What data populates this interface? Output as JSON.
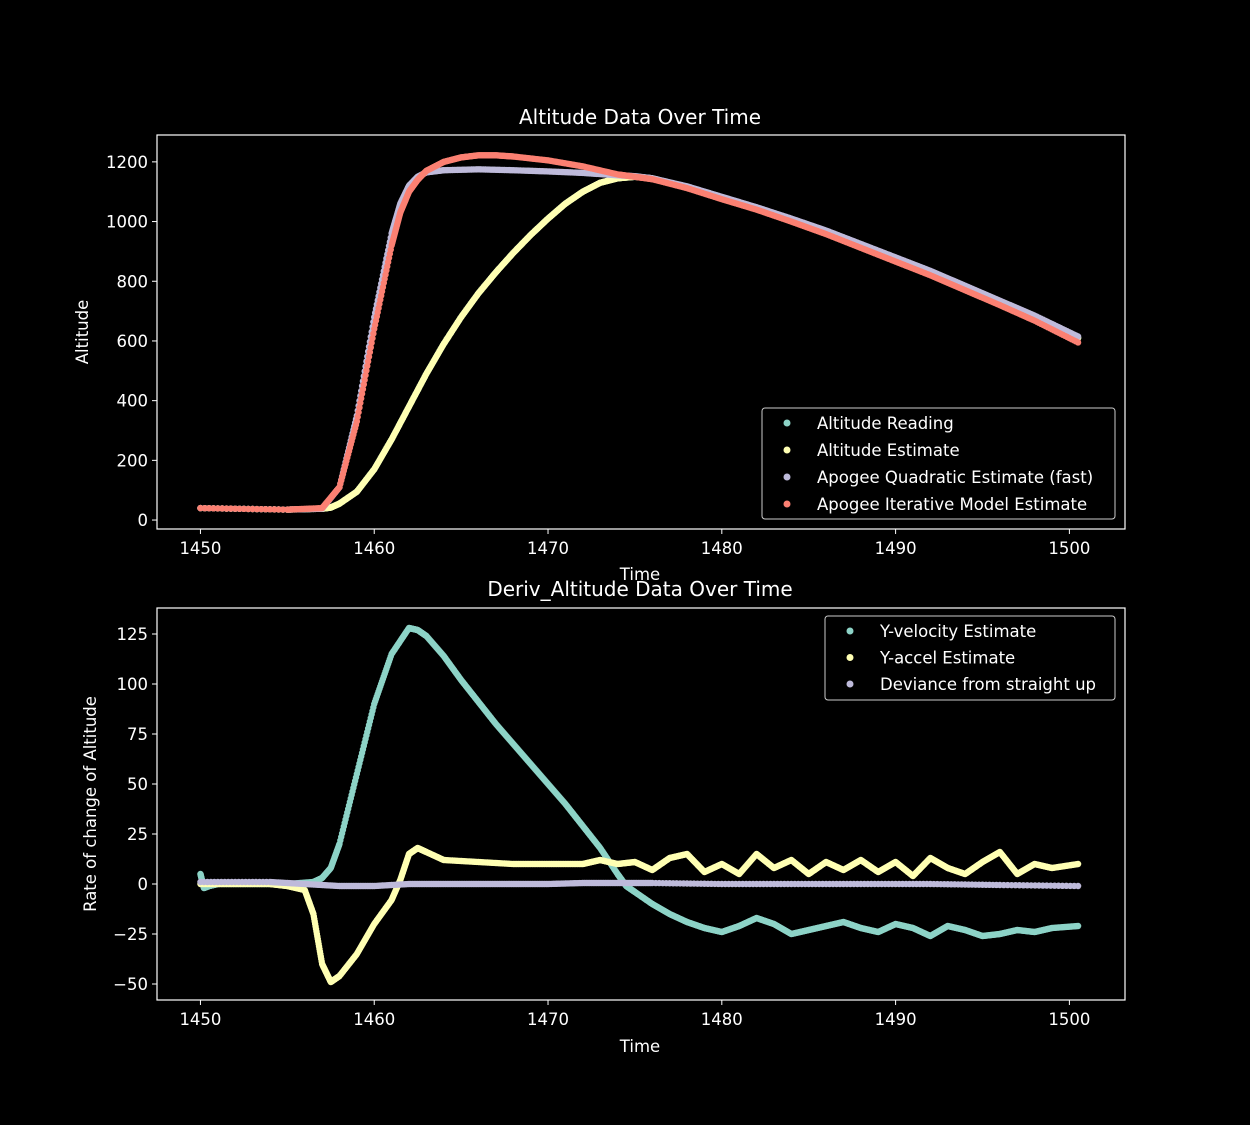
{
  "chart_data": [
    {
      "type": "scatter",
      "title": "Altitude Data Over Time",
      "xlabel": "Time",
      "ylabel": "Altitude",
      "xlim": [
        1447.5,
        1503.2
      ],
      "ylim": [
        -30,
        1290
      ],
      "xticks": [
        1450,
        1460,
        1470,
        1480,
        1490,
        1500
      ],
      "yticks": [
        0,
        200,
        400,
        600,
        800,
        1000,
        1200
      ],
      "grid": false,
      "legend_position": "lower-right",
      "series": [
        {
          "name": "Altitude Reading",
          "color": "#8dd3c7",
          "x": [
            1450,
            1455,
            1457,
            1457.5,
            1458,
            1459,
            1460,
            1461,
            1462,
            1463,
            1464,
            1465,
            1466,
            1467,
            1468,
            1469,
            1470,
            1471,
            1472,
            1473,
            1474,
            1475,
            1476,
            1478,
            1480,
            1482,
            1484,
            1486,
            1488,
            1490,
            1492,
            1494,
            1496,
            1498,
            1500.5
          ],
          "y": [
            40,
            35,
            38,
            42,
            55,
            95,
            170,
            270,
            380,
            490,
            590,
            680,
            760,
            830,
            895,
            955,
            1010,
            1060,
            1100,
            1130,
            1145,
            1150,
            1145,
            1115,
            1080,
            1045,
            1005,
            965,
            920,
            875,
            830,
            780,
            730,
            680,
            610
          ]
        },
        {
          "name": "Altitude Estimate",
          "color": "#ffffb3",
          "x": [
            1450,
            1455,
            1457,
            1457.5,
            1458,
            1459,
            1460,
            1461,
            1462,
            1463,
            1464,
            1465,
            1466,
            1467,
            1468,
            1469,
            1470,
            1471,
            1472,
            1473,
            1474,
            1475,
            1476,
            1478,
            1480,
            1482,
            1484,
            1486,
            1488,
            1490,
            1492,
            1494,
            1496,
            1498,
            1500.5
          ],
          "y": [
            40,
            35,
            38,
            42,
            55,
            95,
            170,
            270,
            380,
            490,
            590,
            680,
            760,
            830,
            895,
            955,
            1010,
            1060,
            1100,
            1130,
            1145,
            1150,
            1145,
            1115,
            1080,
            1045,
            1005,
            965,
            920,
            875,
            830,
            780,
            730,
            680,
            610
          ]
        },
        {
          "name": "Apogee Quadratic Estimate (fast)",
          "color": "#bebada",
          "x": [
            1450,
            1455,
            1457,
            1458,
            1459,
            1460,
            1461,
            1461.5,
            1462,
            1462.5,
            1463,
            1464,
            1466,
            1468,
            1470,
            1472,
            1474,
            1475,
            1476,
            1478,
            1480,
            1482,
            1484,
            1486,
            1488,
            1490,
            1492,
            1494,
            1496,
            1498,
            1500.5
          ],
          "y": [
            40,
            35,
            38,
            110,
            350,
            680,
            960,
            1060,
            1120,
            1150,
            1165,
            1172,
            1175,
            1172,
            1168,
            1163,
            1155,
            1152,
            1145,
            1118,
            1083,
            1048,
            1010,
            970,
            925,
            880,
            835,
            785,
            735,
            685,
            615
          ]
        },
        {
          "name": "Apogee Iterative Model Estimate",
          "color": "#fb8072",
          "x": [
            1450,
            1455,
            1457,
            1458,
            1459,
            1460,
            1461,
            1461.5,
            1462,
            1462.5,
            1463,
            1464,
            1465,
            1466,
            1467,
            1468,
            1470,
            1472,
            1474,
            1475,
            1476,
            1478,
            1480,
            1482,
            1484,
            1486,
            1488,
            1490,
            1492,
            1494,
            1496,
            1498,
            1500.5
          ],
          "y": [
            40,
            35,
            40,
            110,
            330,
            640,
            920,
            1030,
            1100,
            1140,
            1170,
            1200,
            1215,
            1222,
            1222,
            1218,
            1205,
            1185,
            1158,
            1150,
            1142,
            1112,
            1075,
            1040,
            1000,
            958,
            912,
            866,
            820,
            770,
            720,
            668,
            595
          ]
        }
      ]
    },
    {
      "type": "scatter",
      "title": "Deriv_Altitude Data Over Time",
      "xlabel": "Time",
      "ylabel": "Rate of change of Altitude",
      "xlim": [
        1447.5,
        1503.2
      ],
      "ylim": [
        -58,
        138
      ],
      "xticks": [
        1450,
        1460,
        1470,
        1480,
        1490,
        1500
      ],
      "yticks": [
        -50,
        -25,
        0,
        25,
        50,
        75,
        100,
        125
      ],
      "grid": false,
      "legend_position": "upper-right",
      "series": [
        {
          "name": "Y-velocity Estimate",
          "color": "#8dd3c7",
          "x": [
            1450,
            1450.2,
            1450.5,
            1451,
            1453,
            1455,
            1456.5,
            1457,
            1457.5,
            1458,
            1459,
            1460,
            1461,
            1462,
            1462.5,
            1463,
            1464,
            1465,
            1466,
            1467,
            1468,
            1469,
            1470,
            1471,
            1472,
            1473,
            1474,
            1474.5,
            1475,
            1476,
            1477,
            1478,
            1479,
            1480,
            1481,
            1482,
            1483,
            1484,
            1485,
            1486,
            1487,
            1488,
            1489,
            1490,
            1491,
            1492,
            1493,
            1494,
            1495,
            1496,
            1497,
            1498,
            1499,
            1500.5
          ],
          "y": [
            5,
            -2,
            -1,
            0,
            0,
            0,
            1,
            3,
            8,
            20,
            55,
            90,
            115,
            128,
            127,
            124,
            114,
            102,
            91,
            80,
            70,
            60,
            50,
            40,
            29,
            18,
            5,
            -1,
            -4,
            -10,
            -15,
            -19,
            -22,
            -24,
            -21,
            -17,
            -20,
            -25,
            -23,
            -21,
            -19,
            -22,
            -24,
            -20,
            -22,
            -26,
            -21,
            -23,
            -26,
            -25,
            -23,
            -24,
            -22,
            -21
          ]
        },
        {
          "name": "Y-accel Estimate",
          "color": "#ffffb3",
          "x": [
            1450,
            1452,
            1454,
            1455,
            1456,
            1456.5,
            1457,
            1457.5,
            1458,
            1459,
            1460,
            1461,
            1461.5,
            1462,
            1462.5,
            1463,
            1464,
            1466,
            1468,
            1470,
            1472,
            1473,
            1474,
            1475,
            1476,
            1477,
            1478,
            1479,
            1480,
            1481,
            1482,
            1483,
            1484,
            1485,
            1486,
            1487,
            1488,
            1489,
            1490,
            1491,
            1492,
            1493,
            1494,
            1495,
            1496,
            1497,
            1498,
            1499,
            1500.5
          ],
          "y": [
            0,
            0,
            0,
            -1,
            -3,
            -15,
            -40,
            -49,
            -46,
            -35,
            -20,
            -8,
            2,
            15,
            18,
            16,
            12,
            11,
            10,
            10,
            10,
            12,
            10,
            11,
            7,
            13,
            15,
            6,
            10,
            5,
            15,
            8,
            12,
            5,
            11,
            7,
            12,
            6,
            11,
            4,
            13,
            8,
            5,
            11,
            16,
            5,
            10,
            8,
            10
          ]
        },
        {
          "name": "Deviance from straight up",
          "color": "#bebada",
          "x": [
            1450,
            1454,
            1456,
            1458,
            1460,
            1462,
            1464,
            1466,
            1468,
            1470,
            1472,
            1474,
            1476,
            1480,
            1484,
            1488,
            1492,
            1496,
            1500.5
          ],
          "y": [
            1,
            1,
            0,
            -1,
            -1,
            0,
            0,
            0,
            0,
            0,
            0.5,
            0.5,
            0.5,
            0,
            0,
            0,
            0,
            -0.5,
            -1
          ]
        }
      ]
    }
  ]
}
